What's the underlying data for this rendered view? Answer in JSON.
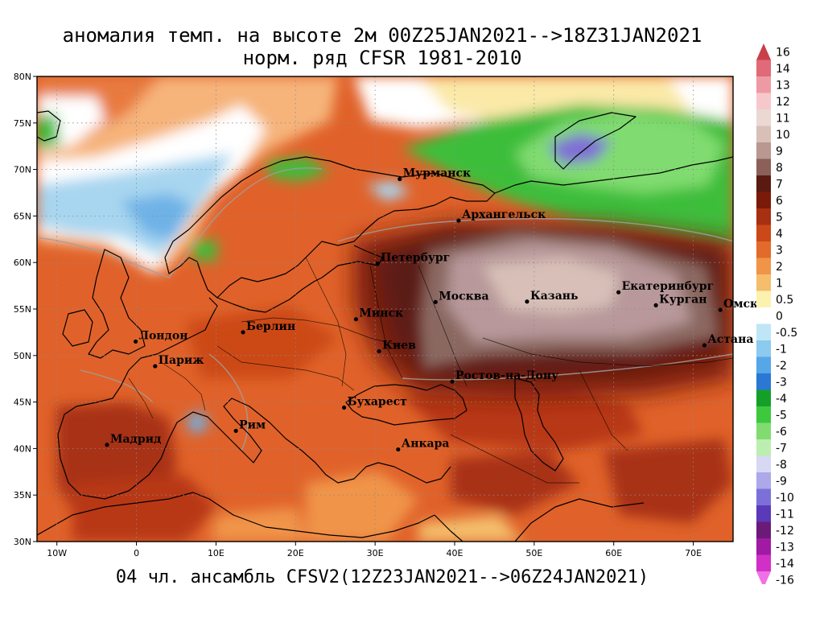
{
  "title": {
    "line1": "аномалия темп. на высоте 2м 00Z25JAN2021-->18Z31JAN2021",
    "line2": "норм. ряд CFSR 1981-2010"
  },
  "footer": "04 чл. ансамбль CFSV2(12Z23JAN2021-->06Z24JAN2021)",
  "axes": {
    "lat_labels": [
      "80N",
      "75N",
      "70N",
      "65N",
      "60N",
      "55N",
      "50N",
      "45N",
      "40N",
      "35N",
      "30N"
    ],
    "lon_labels": [
      "10W",
      "0",
      "10E",
      "20E",
      "30E",
      "40E",
      "50E",
      "60E",
      "70E"
    ]
  },
  "cities": [
    {
      "name": "Мурманск",
      "lon": 33.1,
      "lat": 68.97
    },
    {
      "name": "Архангельск",
      "lon": 40.5,
      "lat": 64.5
    },
    {
      "name": "Петербург",
      "lon": 30.3,
      "lat": 59.9
    },
    {
      "name": "Москва",
      "lon": 37.6,
      "lat": 55.75
    },
    {
      "name": "Казань",
      "lon": 49.1,
      "lat": 55.8
    },
    {
      "name": "Екатеринбург",
      "lon": 60.6,
      "lat": 56.8
    },
    {
      "name": "Курган",
      "lon": 65.3,
      "lat": 55.4
    },
    {
      "name": "Омск",
      "lon": 73.4,
      "lat": 54.9
    },
    {
      "name": "Астана",
      "lon": 71.4,
      "lat": 51.1
    },
    {
      "name": "Минск",
      "lon": 27.6,
      "lat": 53.9
    },
    {
      "name": "Киев",
      "lon": 30.5,
      "lat": 50.45
    },
    {
      "name": "Берлин",
      "lon": 13.4,
      "lat": 52.5
    },
    {
      "name": "Лондон",
      "lon": -0.1,
      "lat": 51.5
    },
    {
      "name": "Париж",
      "lon": 2.35,
      "lat": 48.85
    },
    {
      "name": "Ростов-на-Дону",
      "lon": 39.7,
      "lat": 47.2
    },
    {
      "name": "Бухарест",
      "lon": 26.1,
      "lat": 44.4
    },
    {
      "name": "Рим",
      "lon": 12.5,
      "lat": 41.9
    },
    {
      "name": "Мадрид",
      "lon": -3.7,
      "lat": 40.4
    },
    {
      "name": "Анкара",
      "lon": 32.9,
      "lat": 39.9
    }
  ],
  "legend": {
    "labels": [
      "16",
      "14",
      "13",
      "12",
      "11",
      "10",
      "9",
      "8",
      "7",
      "6",
      "5",
      "4",
      "3",
      "2",
      "1",
      "0.5",
      "0",
      "-0.5",
      "-1",
      "-2",
      "-3",
      "-4",
      "-5",
      "-6",
      "-7",
      "-8",
      "-9",
      "-10",
      "-11",
      "-12",
      "-13",
      "-14",
      "-16"
    ],
    "colors": [
      "#c8404a",
      "#e06a78",
      "#ee9aa4",
      "#f6c8cc",
      "#ecd8d2",
      "#d8c0b8",
      "#b89890",
      "#8a6058",
      "#5a1a12",
      "#7a1a08",
      "#a83012",
      "#cc4818",
      "#e26a2a",
      "#f09448",
      "#f4be6c",
      "#fcf2b0",
      "#ffffff",
      "#bfe6f6",
      "#8ccaf0",
      "#56a6e8",
      "#2a78d4",
      "#14a028",
      "#3ec83e",
      "#80dc70",
      "#bceeb0",
      "#d8d8f4",
      "#aca8ea",
      "#7c70d8",
      "#5a3ab8",
      "#6c1a7a",
      "#a01aa4",
      "#d030c8",
      "#f070e6"
    ]
  },
  "map_colors": {
    "warm_base": "#e0622a",
    "strong_warm": "#8a2410",
    "peak": "#8a6860",
    "sea_cold": "#a8d6f0",
    "green_cold": "#3ebe3a",
    "purple_cold": "#8070d4",
    "contour": "#a0a0a0",
    "coast": "#000000"
  }
}
